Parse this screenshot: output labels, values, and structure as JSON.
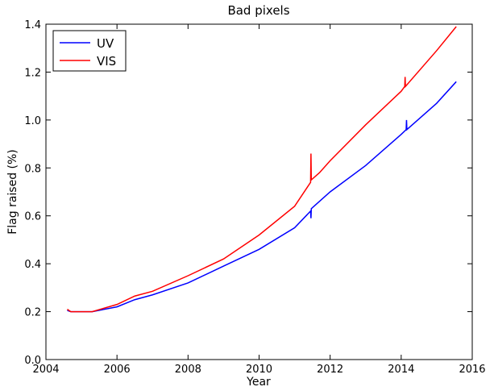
{
  "chart_data": {
    "type": "line",
    "title": "Bad pixels",
    "x_label": "Year",
    "y_label": "Flag raised (%)",
    "xlim": [
      2004,
      2016
    ],
    "xticks": [
      2004,
      2006,
      2008,
      2010,
      2012,
      2014,
      2016
    ],
    "ylim": [
      0,
      1.4
    ],
    "yticks": [
      {
        "value": 0,
        "label": "0.0"
      },
      {
        "value": 0.2,
        "label": "0.2"
      },
      {
        "value": 0.4,
        "label": "0.4"
      },
      {
        "value": 0.6,
        "label": "0.6"
      },
      {
        "value": 0.8,
        "label": "0.8"
      },
      {
        "value": 1.0,
        "label": "1.0"
      },
      {
        "value": 1.2,
        "label": "1.2"
      },
      {
        "value": 1.4,
        "label": "1.4"
      }
    ],
    "legend": "upper left",
    "series": [
      {
        "name": "UV",
        "color": "#0000ff",
        "x": [
          2004.6,
          2004.7,
          2005.3,
          2006,
          2006.5,
          2007,
          2008,
          2009,
          2010,
          2011,
          2011.45,
          2011.46,
          2011.47,
          2012,
          2013,
          2014,
          2014.14,
          2014.15,
          2014.16,
          2015,
          2015.55
        ],
        "values": [
          0.205,
          0.2,
          0.2,
          0.22,
          0.25,
          0.27,
          0.32,
          0.39,
          0.46,
          0.55,
          0.62,
          0.59,
          0.63,
          0.7,
          0.81,
          0.94,
          0.96,
          1.0,
          0.96,
          1.07,
          1.16
        ]
      },
      {
        "name": "VIS",
        "color": "#ff0000",
        "x": [
          2004.6,
          2004.7,
          2005.3,
          2006,
          2006.5,
          2007,
          2008,
          2009,
          2010,
          2011,
          2011.45,
          2011.46,
          2011.47,
          2011.7,
          2012,
          2013,
          2014,
          2014.1,
          2014.11,
          2014.12,
          2015,
          2015.55
        ],
        "values": [
          0.21,
          0.2,
          0.2,
          0.23,
          0.265,
          0.285,
          0.35,
          0.42,
          0.52,
          0.64,
          0.74,
          0.86,
          0.75,
          0.78,
          0.83,
          0.98,
          1.12,
          1.14,
          1.18,
          1.14,
          1.29,
          1.39
        ]
      }
    ]
  }
}
